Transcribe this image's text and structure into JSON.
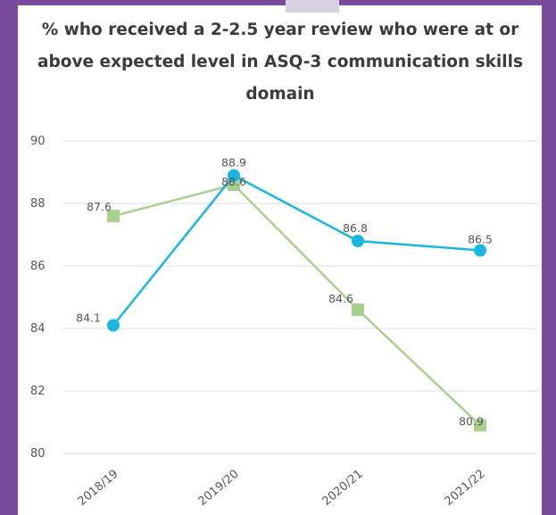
{
  "chart_data": {
    "type": "line",
    "title": "% who received a 2-2.5 year review who were at or above expected level in ASQ-3 communication skills domain",
    "categories": [
      "2018/19",
      "2019/20",
      "2020/21",
      "2021/22"
    ],
    "series": [
      {
        "color": "#1ab6e2",
        "marker": "circle",
        "values": [
          84.1,
          88.9,
          86.8,
          86.5
        ]
      },
      {
        "color": "#a9d18e",
        "marker": "square",
        "values": [
          87.6,
          88.6,
          84.6,
          80.9
        ]
      }
    ],
    "yticks": [
      80,
      82,
      84,
      86,
      88,
      90
    ],
    "ylim": [
      80,
      90
    ],
    "grid": true,
    "data_labels": {
      "series_0": [
        "84.1",
        "88.9",
        "86.8",
        "86.5"
      ],
      "series_1": [
        "87.6",
        "88.6",
        "84.6",
        "80.9"
      ]
    }
  },
  "colors": {
    "frame": "#7a4a9c",
    "grid": "#e9e9e9",
    "title": "#3b3b3b"
  }
}
